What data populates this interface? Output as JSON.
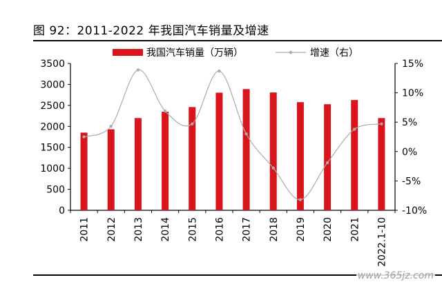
{
  "figure_title": "图 92：2011-2022 年我国汽车销量及增速",
  "watermark": "www.365jz.com",
  "chart_data": {
    "type": "bar",
    "categories": [
      "2011",
      "2012",
      "2013",
      "2014",
      "2015",
      "2016",
      "2017",
      "2018",
      "2019",
      "2020",
      "2021",
      "2022.1-10"
    ],
    "series": [
      {
        "name": "我国汽车销量（万辆）",
        "type": "bar",
        "axis": "left",
        "color": "#d9141b",
        "values": [
          1851,
          1931,
          2198,
          2349,
          2460,
          2803,
          2888,
          2808,
          2577,
          2528,
          2628,
          2198
        ]
      },
      {
        "name": "增速（右）",
        "type": "line",
        "axis": "right",
        "color": "#aaaaaa",
        "values": [
          2.5,
          4.3,
          13.9,
          6.9,
          4.7,
          13.7,
          3.0,
          -2.8,
          -8.2,
          -1.9,
          3.8,
          4.7
        ]
      }
    ],
    "y_left": {
      "min": 0,
      "max": 3500,
      "step": 500,
      "tick_labels": [
        "0",
        "500",
        "1000",
        "1500",
        "2000",
        "2500",
        "3000",
        "3500"
      ]
    },
    "y_right": {
      "min": -10,
      "max": 15,
      "step": 5,
      "tick_labels": [
        "-10%",
        "-5%",
        "0%",
        "5%",
        "10%",
        "15%"
      ]
    },
    "legend_position": "top-center",
    "grid": false
  }
}
